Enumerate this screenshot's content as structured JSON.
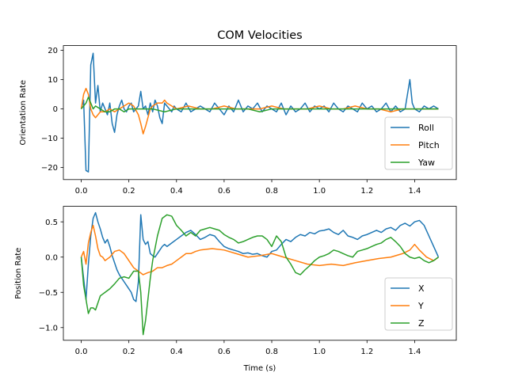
{
  "title": "COM Velocities",
  "colors": {
    "series1": "#1f77b4",
    "series2": "#ff7f0e",
    "series3": "#2ca02c"
  },
  "chart_data": [
    {
      "type": "line",
      "title": "COM Velocities",
      "xlabel": "",
      "ylabel": "Orientation Rate",
      "xlim": [
        -0.075,
        1.575
      ],
      "ylim": [
        -24.1,
        21.6
      ],
      "xticks": [
        0.0,
        0.2,
        0.4,
        0.6,
        0.8,
        1.0,
        1.2,
        1.4
      ],
      "xtick_labels": [
        "0.0",
        "0.2",
        "0.4",
        "0.6",
        "0.8",
        "1.0",
        "1.2",
        "1.4"
      ],
      "yticks": [
        20,
        10,
        0,
        -10,
        -20
      ],
      "ytick_labels": [
        "20",
        "10",
        "0",
        "−10",
        "−20"
      ],
      "legend": "lower-right",
      "series": [
        {
          "name": "Roll",
          "color": "#1f77b4",
          "x": [
            0,
            0.01,
            0.02,
            0.03,
            0.04,
            0.05,
            0.06,
            0.07,
            0.08,
            0.09,
            0.1,
            0.11,
            0.12,
            0.13,
            0.14,
            0.15,
            0.16,
            0.17,
            0.18,
            0.19,
            0.2,
            0.21,
            0.22,
            0.23,
            0.24,
            0.25,
            0.26,
            0.27,
            0.28,
            0.29,
            0.3,
            0.31,
            0.32,
            0.33,
            0.34,
            0.35,
            0.36,
            0.37,
            0.38,
            0.39,
            0.4,
            0.42,
            0.44,
            0.46,
            0.48,
            0.5,
            0.52,
            0.54,
            0.56,
            0.58,
            0.6,
            0.62,
            0.64,
            0.66,
            0.68,
            0.7,
            0.72,
            0.74,
            0.76,
            0.78,
            0.8,
            0.82,
            0.84,
            0.86,
            0.88,
            0.9,
            0.92,
            0.94,
            0.96,
            0.98,
            1.0,
            1.02,
            1.04,
            1.06,
            1.08,
            1.1,
            1.12,
            1.14,
            1.16,
            1.18,
            1.2,
            1.22,
            1.24,
            1.26,
            1.28,
            1.3,
            1.32,
            1.34,
            1.36,
            1.37,
            1.38,
            1.39,
            1.4,
            1.42,
            1.44,
            1.46,
            1.48,
            1.5
          ],
          "y": [
            0,
            3,
            -21,
            -21.5,
            15,
            19,
            2,
            8,
            -1,
            2,
            0,
            -2,
            2,
            -5,
            -8,
            -2,
            1,
            3,
            0,
            -1,
            1,
            2,
            -1,
            0,
            1,
            6,
            0,
            1,
            -2,
            2,
            -1,
            3,
            1,
            -3,
            -5,
            2,
            1,
            0,
            -1,
            1,
            0,
            -1,
            2,
            -1,
            0,
            1,
            0,
            -1,
            2,
            0,
            -2,
            1,
            -1,
            3,
            -1,
            1,
            0,
            2,
            -1,
            1,
            0,
            -1,
            2,
            -2,
            1,
            -1,
            0,
            2,
            -1,
            1,
            0,
            1,
            -1,
            2,
            0,
            -1,
            1,
            0,
            -1,
            2,
            0,
            1,
            -1,
            0,
            2,
            -1,
            1,
            -1,
            0,
            5,
            10,
            2,
            0,
            -1,
            1,
            0,
            1,
            0
          ]
        },
        {
          "name": "Pitch",
          "color": "#ff7f0e",
          "x": [
            0,
            0.01,
            0.02,
            0.03,
            0.04,
            0.05,
            0.06,
            0.07,
            0.08,
            0.1,
            0.12,
            0.14,
            0.16,
            0.18,
            0.2,
            0.22,
            0.24,
            0.25,
            0.26,
            0.27,
            0.28,
            0.29,
            0.3,
            0.32,
            0.34,
            0.35,
            0.36,
            0.38,
            0.4,
            0.45,
            0.5,
            0.55,
            0.6,
            0.65,
            0.7,
            0.75,
            0.8,
            0.85,
            0.9,
            0.95,
            1.0,
            1.05,
            1.1,
            1.15,
            1.2,
            1.25,
            1.3,
            1.35,
            1.4,
            1.45,
            1.5
          ],
          "y": [
            0,
            5,
            7,
            5,
            0,
            -2,
            -3,
            -2,
            -1,
            -1,
            0,
            -1,
            0,
            1,
            2,
            1,
            -2,
            -5,
            -8.5,
            -6,
            -3,
            0,
            1,
            2,
            2,
            3,
            2,
            1,
            0,
            1,
            0,
            0,
            1,
            0,
            0,
            0,
            1,
            0,
            0,
            0,
            1,
            0,
            0,
            1,
            0,
            0,
            -1,
            0,
            0,
            0,
            0
          ]
        },
        {
          "name": "Yaw",
          "color": "#2ca02c",
          "x": [
            0,
            0.01,
            0.02,
            0.03,
            0.04,
            0.05,
            0.06,
            0.08,
            0.1,
            0.12,
            0.14,
            0.16,
            0.18,
            0.2,
            0.25,
            0.3,
            0.35,
            0.4,
            0.45,
            0.5,
            0.55,
            0.6,
            0.65,
            0.7,
            0.75,
            0.8,
            0.85,
            0.9,
            0.95,
            1.0,
            1.05,
            1.1,
            1.15,
            1.2,
            1.25,
            1.3,
            1.35,
            1.4,
            1.45,
            1.5
          ],
          "y": [
            0,
            1,
            2,
            4,
            2,
            0,
            1,
            0,
            -1,
            -1,
            0,
            0,
            -1,
            0,
            0,
            0,
            -1,
            0,
            0,
            0,
            0,
            0,
            0,
            0,
            -1,
            0,
            0,
            0,
            0,
            0,
            0,
            0,
            0,
            0,
            0,
            0,
            0,
            0,
            0,
            0
          ]
        }
      ]
    },
    {
      "type": "line",
      "title": "",
      "xlabel": "Time (s)",
      "ylabel": "Position Rate",
      "xlim": [
        -0.075,
        1.575
      ],
      "ylim": [
        -1.18,
        0.72
      ],
      "xticks": [
        0.0,
        0.2,
        0.4,
        0.6,
        0.8,
        1.0,
        1.2,
        1.4
      ],
      "xtick_labels": [
        "0.0",
        "0.2",
        "0.4",
        "0.6",
        "0.8",
        "1.0",
        "1.2",
        "1.4"
      ],
      "yticks": [
        0.5,
        0.0,
        -0.5,
        -1.0
      ],
      "ytick_labels": [
        "0.5",
        "0.0",
        "−0.5",
        "−1.0"
      ],
      "legend": "lower-right",
      "series": [
        {
          "name": "X",
          "color": "#1f77b4",
          "x": [
            0,
            0.01,
            0.02,
            0.03,
            0.04,
            0.05,
            0.06,
            0.07,
            0.08,
            0.09,
            0.1,
            0.11,
            0.12,
            0.13,
            0.14,
            0.15,
            0.16,
            0.17,
            0.18,
            0.19,
            0.2,
            0.21,
            0.22,
            0.23,
            0.24,
            0.25,
            0.26,
            0.27,
            0.28,
            0.29,
            0.3,
            0.31,
            0.32,
            0.33,
            0.34,
            0.35,
            0.36,
            0.38,
            0.4,
            0.42,
            0.44,
            0.46,
            0.48,
            0.5,
            0.52,
            0.54,
            0.56,
            0.58,
            0.6,
            0.62,
            0.64,
            0.66,
            0.68,
            0.7,
            0.72,
            0.74,
            0.76,
            0.78,
            0.8,
            0.82,
            0.84,
            0.86,
            0.88,
            0.9,
            0.92,
            0.94,
            0.96,
            0.98,
            1.0,
            1.02,
            1.04,
            1.06,
            1.08,
            1.1,
            1.12,
            1.14,
            1.16,
            1.18,
            1.2,
            1.22,
            1.24,
            1.26,
            1.28,
            1.3,
            1.32,
            1.34,
            1.36,
            1.38,
            1.4,
            1.42,
            1.44,
            1.46,
            1.48,
            1.5
          ],
          "y": [
            0,
            -0.3,
            -0.6,
            -0.1,
            0.3,
            0.55,
            0.63,
            0.5,
            0.4,
            0.28,
            0.2,
            0.25,
            0.15,
            0.02,
            -0.08,
            -0.18,
            -0.25,
            -0.3,
            -0.35,
            -0.4,
            -0.45,
            -0.5,
            -0.6,
            -0.63,
            -0.35,
            0.6,
            0.25,
            0.18,
            0.22,
            0.05,
            0.02,
            0.0,
            0.05,
            0.1,
            0.15,
            0.18,
            0.15,
            0.2,
            0.25,
            0.3,
            0.35,
            0.38,
            0.32,
            0.25,
            0.28,
            0.32,
            0.3,
            0.22,
            0.15,
            0.12,
            0.1,
            0.08,
            0.05,
            0.06,
            0.04,
            0.05,
            0.02,
            0.0,
            0.08,
            0.1,
            0.18,
            0.25,
            0.22,
            0.28,
            0.32,
            0.3,
            0.35,
            0.33,
            0.37,
            0.38,
            0.4,
            0.35,
            0.32,
            0.38,
            0.3,
            0.28,
            0.25,
            0.3,
            0.32,
            0.35,
            0.38,
            0.35,
            0.4,
            0.42,
            0.38,
            0.45,
            0.48,
            0.44,
            0.5,
            0.52,
            0.45,
            0.3,
            0.15,
            0.0
          ]
        },
        {
          "name": "Y",
          "color": "#ff7f0e",
          "x": [
            0,
            0.01,
            0.02,
            0.03,
            0.04,
            0.05,
            0.06,
            0.07,
            0.08,
            0.09,
            0.1,
            0.12,
            0.14,
            0.16,
            0.18,
            0.2,
            0.22,
            0.24,
            0.26,
            0.28,
            0.3,
            0.32,
            0.34,
            0.36,
            0.38,
            0.4,
            0.42,
            0.44,
            0.46,
            0.48,
            0.5,
            0.55,
            0.6,
            0.65,
            0.7,
            0.75,
            0.8,
            0.85,
            0.9,
            0.95,
            1.0,
            1.05,
            1.1,
            1.15,
            1.2,
            1.25,
            1.3,
            1.35,
            1.38,
            1.4,
            1.42,
            1.45,
            1.48,
            1.5
          ],
          "y": [
            0,
            0.08,
            -0.1,
            0.2,
            0.35,
            0.45,
            0.3,
            0.12,
            0.02,
            0.0,
            -0.05,
            0.0,
            0.08,
            0.1,
            0.05,
            -0.05,
            -0.15,
            -0.2,
            -0.25,
            -0.22,
            -0.2,
            -0.15,
            -0.15,
            -0.12,
            -0.1,
            -0.05,
            0.0,
            0.05,
            0.05,
            0.08,
            0.1,
            0.12,
            0.1,
            0.05,
            0.0,
            0.02,
            0.05,
            0.0,
            -0.05,
            -0.1,
            -0.12,
            -0.1,
            -0.12,
            -0.08,
            -0.05,
            -0.02,
            0.0,
            0.05,
            0.1,
            0.18,
            0.1,
            0.0,
            -0.05,
            0.0
          ]
        },
        {
          "name": "Z",
          "color": "#2ca02c",
          "x": [
            0,
            0.01,
            0.02,
            0.03,
            0.04,
            0.05,
            0.06,
            0.07,
            0.08,
            0.1,
            0.12,
            0.14,
            0.16,
            0.18,
            0.2,
            0.22,
            0.24,
            0.25,
            0.26,
            0.27,
            0.28,
            0.29,
            0.3,
            0.32,
            0.34,
            0.36,
            0.38,
            0.4,
            0.42,
            0.44,
            0.46,
            0.48,
            0.5,
            0.52,
            0.54,
            0.56,
            0.58,
            0.6,
            0.62,
            0.64,
            0.66,
            0.68,
            0.7,
            0.72,
            0.74,
            0.76,
            0.78,
            0.8,
            0.82,
            0.84,
            0.86,
            0.88,
            0.9,
            0.92,
            0.94,
            0.96,
            0.98,
            1.0,
            1.02,
            1.04,
            1.06,
            1.08,
            1.1,
            1.12,
            1.14,
            1.16,
            1.18,
            1.2,
            1.22,
            1.24,
            1.26,
            1.28,
            1.3,
            1.32,
            1.34,
            1.36,
            1.38,
            1.4,
            1.42,
            1.44,
            1.46,
            1.48,
            1.5
          ],
          "y": [
            0,
            -0.4,
            -0.6,
            -0.8,
            -0.72,
            -0.72,
            -0.75,
            -0.65,
            -0.55,
            -0.5,
            -0.45,
            -0.38,
            -0.3,
            -0.28,
            -0.3,
            -0.2,
            -0.2,
            -0.5,
            -1.1,
            -0.9,
            -0.6,
            -0.3,
            -0.05,
            0.3,
            0.55,
            0.6,
            0.58,
            0.45,
            0.38,
            0.3,
            0.35,
            0.3,
            0.38,
            0.4,
            0.42,
            0.4,
            0.38,
            0.32,
            0.28,
            0.25,
            0.2,
            0.22,
            0.25,
            0.28,
            0.3,
            0.3,
            0.25,
            0.15,
            0.3,
            0.22,
            0.0,
            -0.1,
            -0.22,
            -0.25,
            -0.18,
            -0.12,
            -0.05,
            0.0,
            0.02,
            0.05,
            0.1,
            0.08,
            0.05,
            0.02,
            0.0,
            0.08,
            0.1,
            0.12,
            0.15,
            0.18,
            0.2,
            0.25,
            0.28,
            0.22,
            0.15,
            0.05,
            0.0,
            -0.02,
            0.0,
            -0.05,
            -0.08,
            -0.05,
            0.0
          ]
        }
      ]
    }
  ]
}
